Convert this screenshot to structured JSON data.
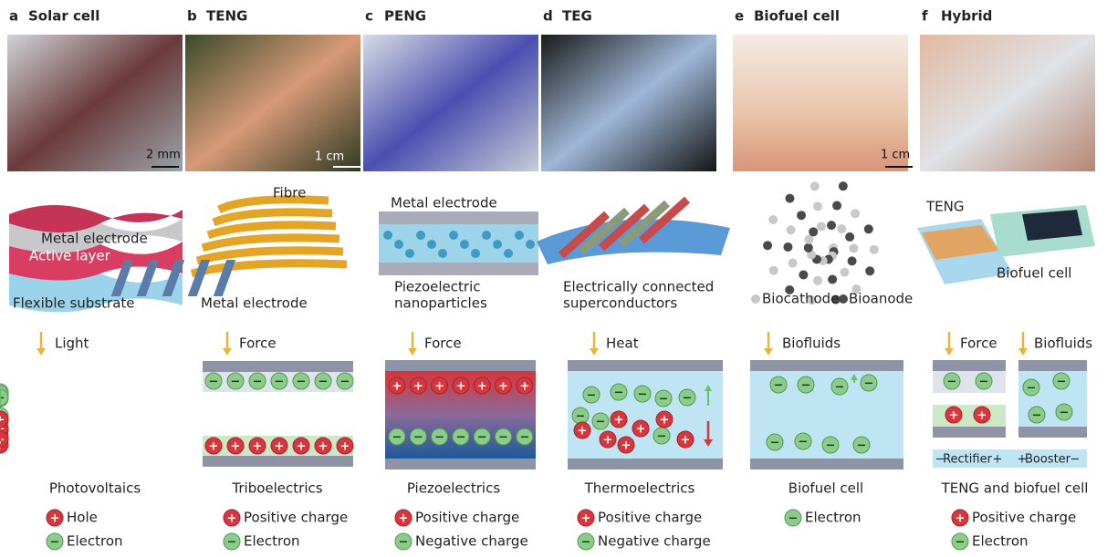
{
  "symbols": {
    "plus": "+",
    "minus": "−"
  },
  "panels": [
    {
      "letter": "a",
      "title": "Solar cell",
      "scale": "2 mm",
      "labels": [
        [
          "Metal electrode"
        ],
        [
          "Active layer"
        ],
        [
          "Flexible substrate"
        ]
      ],
      "inputs": [
        "Light"
      ],
      "mechanism": "Photovoltaics",
      "legend": [
        {
          "sign": "+",
          "text": "Hole"
        },
        {
          "sign": "−",
          "text": "Electron"
        }
      ]
    },
    {
      "letter": "b",
      "title": "TENG",
      "scale": "1 cm",
      "labels": [
        [
          "Fibre"
        ],
        [
          "Metal electrode"
        ]
      ],
      "inputs": [
        "Force"
      ],
      "mechanism": "Triboelectrics",
      "legend": [
        {
          "sign": "+",
          "text": "Positive charge"
        },
        {
          "sign": "−",
          "text": "Electron"
        }
      ]
    },
    {
      "letter": "c",
      "title": "PENG",
      "labels": [
        [
          "Metal electrode"
        ],
        [
          "Piezoelectric",
          "nanoparticles"
        ]
      ],
      "inputs": [
        "Force"
      ],
      "mechanism": "Piezoelectrics",
      "legend": [
        {
          "sign": "+",
          "text": "Positive charge"
        },
        {
          "sign": "−",
          "text": "Negative charge"
        }
      ]
    },
    {
      "letter": "d",
      "title": "TEG",
      "labels": [
        [
          "Electrically connected",
          "superconductors"
        ]
      ],
      "inputs": [
        "Heat"
      ],
      "mechanism": "Thermoelectrics",
      "legend": [
        {
          "sign": "+",
          "text": "Positive charge"
        },
        {
          "sign": "−",
          "text": "Negative charge"
        }
      ]
    },
    {
      "letter": "e",
      "title": "Biofuel cell",
      "scale": "1 cm",
      "labels": [
        [
          "Biocathode"
        ],
        [
          "Bioanode"
        ]
      ],
      "inputs": [
        "Biofluids"
      ],
      "mechanism": "Biofuel cell",
      "legend": [
        {
          "sign": "−",
          "text": "Electron"
        }
      ]
    },
    {
      "letter": "f",
      "title": "Hybrid",
      "labels": [
        [
          "TENG"
        ],
        [
          "Biofuel cell"
        ]
      ],
      "inputs": [
        "Force",
        "Biofluids"
      ],
      "mechanism": "TENG and biofuel cell",
      "circuit": [
        {
          "left": "−",
          "name": "Rectifier",
          "right": "+"
        },
        {
          "left": "+",
          "name": "Booster",
          "right": "−"
        }
      ],
      "legend": [
        {
          "sign": "+",
          "text": "Positive charge"
        },
        {
          "sign": "−",
          "text": "Electron"
        }
      ]
    }
  ]
}
